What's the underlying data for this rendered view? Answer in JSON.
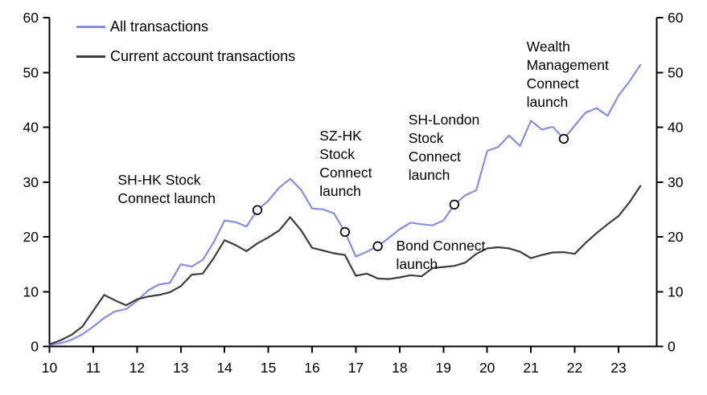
{
  "page": {
    "background": "#ffffff",
    "axis_color": "#000000"
  },
  "chart_data": {
    "type": "line",
    "title": "",
    "xlabel": "",
    "ylabel": "",
    "grid": "off",
    "legend_position": "top-left-inside",
    "x_axis": {
      "ticks": [
        10,
        11,
        12,
        13,
        14,
        15,
        16,
        17,
        18,
        19,
        20,
        21,
        22,
        23
      ],
      "tick_labels": [
        "10",
        "11",
        "12",
        "13",
        "14",
        "15",
        "16",
        "17",
        "18",
        "19",
        "20",
        "21",
        "22",
        "23"
      ],
      "range": [
        10,
        23.88
      ]
    },
    "y_axis": {
      "ticks": [
        0,
        10,
        20,
        30,
        40,
        50,
        60
      ],
      "tick_labels": [
        "0",
        "10",
        "20",
        "30",
        "40",
        "50",
        "60"
      ],
      "range": [
        0,
        60
      ],
      "sides": "both"
    },
    "x": [
      10,
      10.25,
      10.5,
      10.75,
      11,
      11.25,
      11.5,
      11.75,
      12,
      12.25,
      12.5,
      12.75,
      13,
      13.25,
      13.5,
      13.75,
      14,
      14.25,
      14.5,
      14.75,
      15,
      15.25,
      15.5,
      15.75,
      16,
      16.25,
      16.5,
      16.75,
      17,
      17.25,
      17.5,
      17.75,
      18,
      18.25,
      18.5,
      18.75,
      19,
      19.25,
      19.5,
      19.75,
      20,
      20.25,
      20.5,
      20.75,
      21,
      21.25,
      21.5,
      21.75,
      22,
      22.25,
      22.5,
      22.75,
      23,
      23.25,
      23.5
    ],
    "series": [
      {
        "name": "All transactions",
        "color": "#8b8be8",
        "values": [
          0.3,
          0.6,
          1.2,
          2.2,
          3.6,
          5.2,
          6.4,
          6.8,
          8.3,
          10.2,
          11.3,
          11.6,
          15.0,
          14.6,
          15.8,
          19.0,
          23.0,
          22.7,
          21.9,
          24.9,
          26.6,
          29.0,
          30.6,
          28.6,
          25.2,
          25.0,
          24.3,
          20.9,
          16.4,
          17.3,
          18.3,
          19.8,
          21.4,
          22.6,
          22.3,
          22.1,
          23.0,
          25.9,
          27.6,
          28.5,
          35.7,
          36.4,
          38.5,
          36.6,
          41.2,
          39.6,
          40.1,
          37.9,
          40.3,
          42.7,
          43.5,
          42.1,
          45.8,
          48.4,
          51.4
        ]
      },
      {
        "name": "Current account transactions",
        "color": "#3d3d3d",
        "values": [
          0.4,
          1.1,
          2.1,
          3.6,
          6.5,
          9.4,
          8.4,
          7.5,
          8.6,
          9.1,
          9.4,
          9.9,
          11.0,
          13.1,
          13.3,
          16.1,
          19.4,
          18.5,
          17.4,
          18.8,
          19.9,
          21.2,
          23.6,
          21.2,
          18.0,
          17.5,
          17.0,
          16.7,
          12.9,
          13.3,
          12.4,
          12.3,
          12.6,
          13.0,
          12.8,
          14.3,
          14.5,
          14.7,
          15.3,
          16.9,
          17.9,
          18.1,
          17.9,
          17.3,
          16.1,
          16.7,
          17.15,
          17.2,
          16.9,
          18.9,
          20.7,
          22.3,
          23.8,
          26.3,
          29.3
        ]
      }
    ],
    "event_markers": [
      {
        "label": "SH-HK Stock Connect launch",
        "x": 14.75,
        "y": 24.9
      },
      {
        "label": "SZ-HK Stock Connect launch",
        "x": 16.75,
        "y": 20.9
      },
      {
        "label": "Bond Connect launch",
        "x": 17.5,
        "y": 18.3
      },
      {
        "label": "SH-London Stock Connect launch",
        "x": 19.25,
        "y": 25.9
      },
      {
        "label": "Wealth Management Connect launch",
        "x": 21.75,
        "y": 37.9
      }
    ],
    "annotations": [
      {
        "text": "SH-HK Stock\nConnect launch",
        "x": 11.56,
        "y": 32.0
      },
      {
        "text": "SZ-HK\nStock\nConnect\nlaunch",
        "x": 16.17,
        "y": 40.1
      },
      {
        "text": "Bond Connect\nlaunch",
        "x": 17.92,
        "y": 20.0
      },
      {
        "text": "SH-London\nStock\nConnect\nlaunch",
        "x": 18.2,
        "y": 43.0
      },
      {
        "text": "Wealth\nManagement\nConnect\nlaunch",
        "x": 20.9,
        "y": 56.3
      }
    ]
  }
}
